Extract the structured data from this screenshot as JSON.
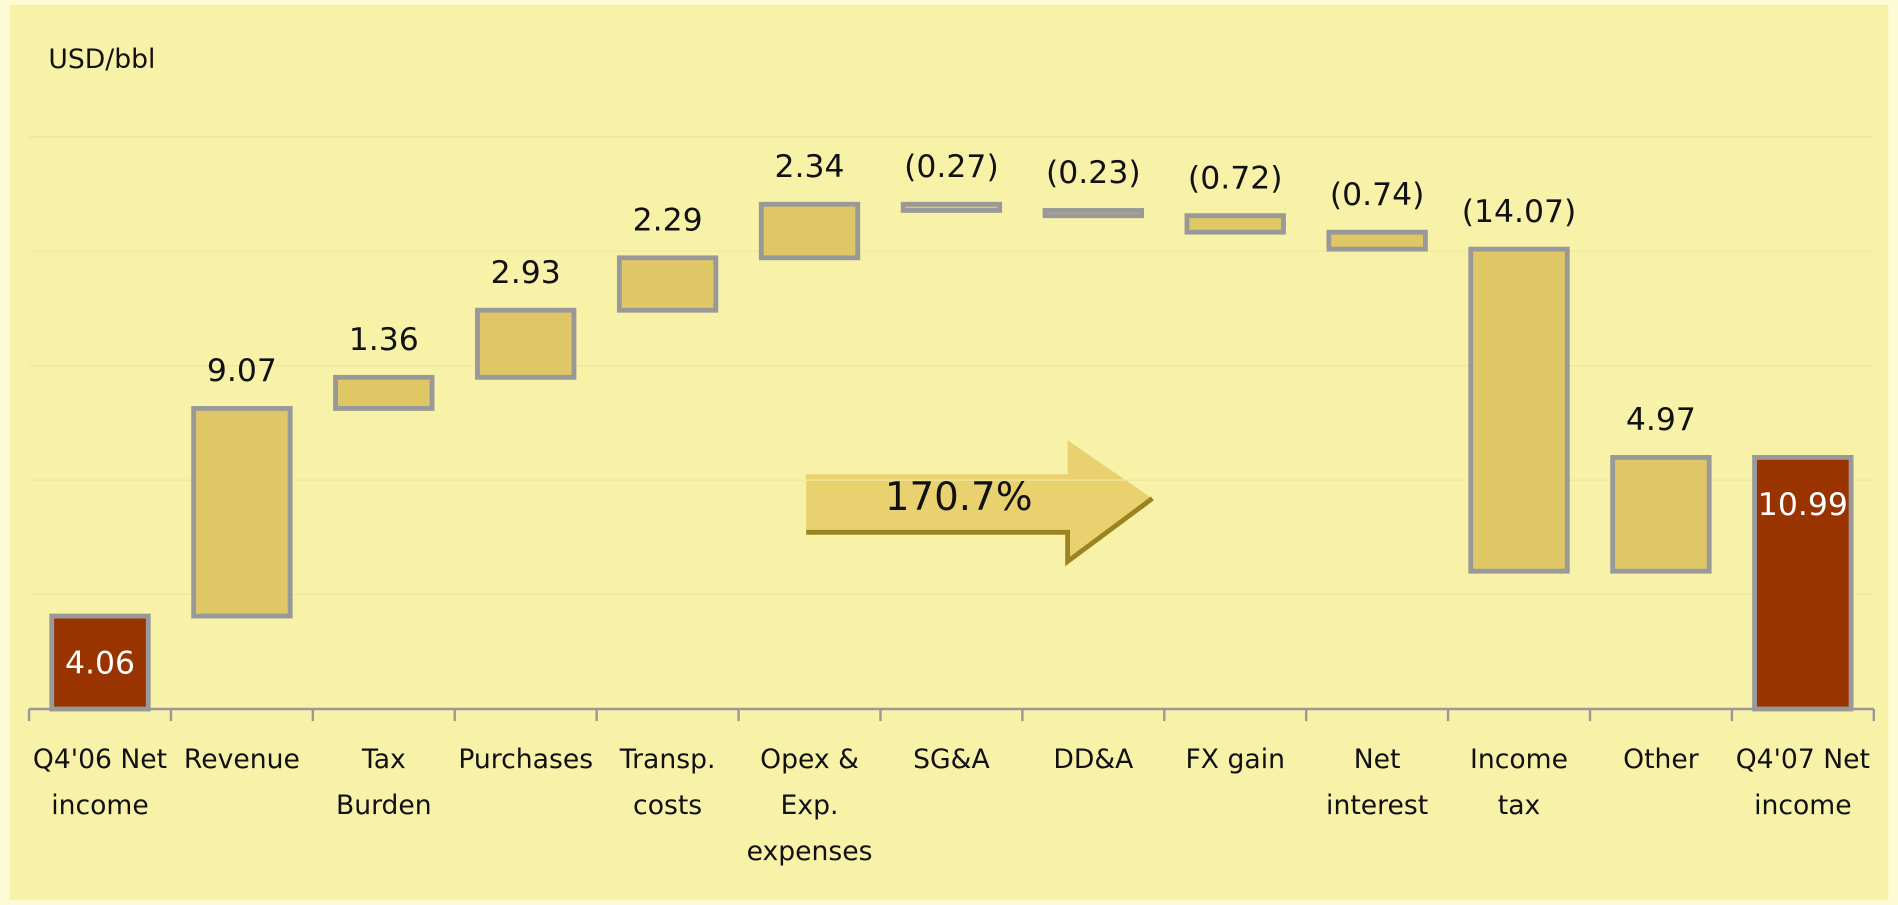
{
  "chart_data": {
    "type": "waterfall",
    "unit_label": "USD/bbl",
    "annotation": "170.7%",
    "categories": [
      [
        "Q4'06 Net",
        "income"
      ],
      [
        "Revenue"
      ],
      [
        "Tax",
        "Burden"
      ],
      [
        "Purchases"
      ],
      [
        "Transp.",
        "costs"
      ],
      [
        "Opex &",
        "Exp.",
        "expenses"
      ],
      [
        "SG&A"
      ],
      [
        "DD&A"
      ],
      [
        "FX gain"
      ],
      [
        "Net",
        "interest"
      ],
      [
        "Income",
        "tax"
      ],
      [
        "Other"
      ],
      [
        "Q4'07 Net",
        "income"
      ]
    ],
    "values": [
      4.06,
      9.07,
      1.36,
      2.93,
      2.29,
      2.34,
      -0.27,
      -0.23,
      -0.72,
      -0.74,
      -14.07,
      4.97,
      10.99
    ],
    "value_labels": [
      "4.06",
      "9.07",
      "1.36",
      "2.93",
      "2.29",
      "2.34",
      "(0.27)",
      "(0.23)",
      "(0.72)",
      "(0.74)",
      "(14.07)",
      "4.97",
      "10.99"
    ],
    "totals": [
      0,
      12
    ],
    "color": "#e0c766",
    "total_color": "#993300",
    "ylim": [
      0,
      25
    ],
    "yticks": [
      0,
      5,
      10,
      15,
      20,
      25
    ],
    "grid": true
  }
}
